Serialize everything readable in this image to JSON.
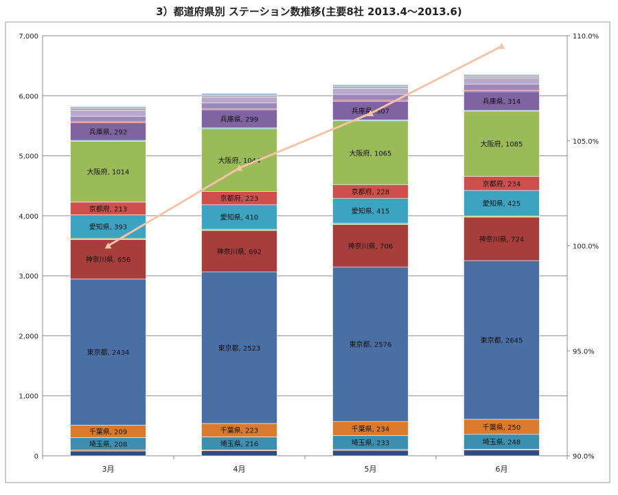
{
  "chart_data": {
    "type": "bar",
    "stacked": true,
    "title": "3）都道府県別 ステーション数推移(主要8社 2013.4～2013.6)",
    "categories": [
      "3月",
      "4月",
      "5月",
      "6月"
    ],
    "ylim": [
      0,
      7000
    ],
    "yticks": [
      "0",
      "1,000",
      "2,000",
      "3,000",
      "4,000",
      "5,000",
      "6,000",
      "7,000"
    ],
    "y2lim": [
      90,
      110
    ],
    "y2ticks": [
      "90.0%",
      "95.0%",
      "100.0%",
      "105.0%",
      "110.0%"
    ],
    "grid": true,
    "series": [
      {
        "name": "",
        "color": "#2f4e7f",
        "values": [
          80,
          85,
          90,
          95
        ],
        "show_label": false
      },
      {
        "name": "",
        "color": "#d06030",
        "values": [
          15,
          15,
          15,
          15
        ],
        "show_label": false
      },
      {
        "name": "埼玉県",
        "color": "#3d8fb0",
        "values": [
          208,
          216,
          233,
          248
        ],
        "show_label": true
      },
      {
        "name": "千葉県",
        "color": "#d97a2c",
        "values": [
          209,
          223,
          234,
          250
        ],
        "show_label": true
      },
      {
        "name": "東京都",
        "color": "#4a6fa5",
        "values": [
          2434,
          2523,
          2576,
          2645
        ],
        "show_label": true
      },
      {
        "name": "神奈川県",
        "color": "#a63e3b",
        "values": [
          656,
          692,
          706,
          724
        ],
        "show_label": true
      },
      {
        "name": "",
        "color": "#9bbf5a",
        "values": [
          20,
          20,
          20,
          20
        ],
        "show_label": false
      },
      {
        "name": "愛知県",
        "color": "#3ca4c0",
        "values": [
          393,
          410,
          415,
          425
        ],
        "show_label": true
      },
      {
        "name": "京都府",
        "color": "#cf4f4c",
        "values": [
          213,
          223,
          228,
          234
        ],
        "show_label": true
      },
      {
        "name": "大阪府",
        "color": "#9bbb59",
        "values": [
          1014,
          1044,
          1065,
          1085
        ],
        "show_label": true
      },
      {
        "name": "",
        "color": "#4bacc6",
        "values": [
          15,
          15,
          15,
          15
        ],
        "show_label": false
      },
      {
        "name": "兵庫県",
        "color": "#8064a2",
        "values": [
          292,
          299,
          307,
          314
        ],
        "show_label": true
      },
      {
        "name": "",
        "color": "#c0504d",
        "values": [
          20,
          20,
          20,
          20
        ],
        "show_label": false
      },
      {
        "name": "",
        "color": "#9b87b8",
        "values": [
          90,
          95,
          100,
          105
        ],
        "show_label": false
      },
      {
        "name": "",
        "color": "#b8a9cc",
        "values": [
          100,
          100,
          100,
          100
        ],
        "show_label": false
      },
      {
        "name": "",
        "color": "#a5a5a5",
        "values": [
          30,
          30,
          30,
          30
        ],
        "show_label": false
      },
      {
        "name": "",
        "color": "#95b3d7",
        "values": [
          30,
          30,
          30,
          30
        ],
        "show_label": false
      }
    ],
    "line": {
      "name": "",
      "axis": "secondary",
      "color": "#f5c4a6",
      "values": [
        100.0,
        103.7,
        106.3,
        109.5
      ]
    }
  }
}
